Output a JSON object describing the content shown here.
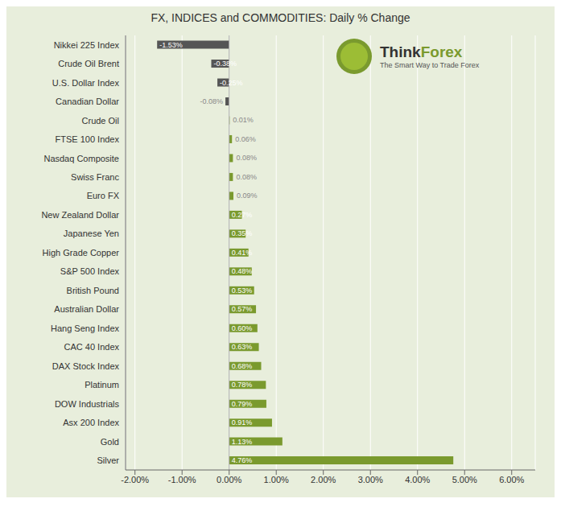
{
  "chart_data": {
    "type": "bar",
    "orientation": "horizontal",
    "title": "FX, INDICES and COMMODITIES: Daily % Change",
    "annotations": [
      "Think",
      "Forex",
      "The Smart Way to Trade Forex"
    ],
    "categories": [
      "Nikkei 225 Index",
      "Crude Oil Brent",
      "U.S. Dollar Index",
      "Canadian Dollar",
      "Crude Oil",
      "FTSE 100 Index",
      "Nasdaq Composite",
      "Swiss Franc",
      "Euro FX",
      "New Zealand Dollar",
      "Japanese Yen",
      "High Grade Copper",
      "S&P 500 Index",
      "British Pound",
      "Australian Dollar",
      "Hang Seng Index",
      "CAC 40 Index",
      "DAX Stock Index",
      "Platinum",
      "DOW Industrials",
      "Asx 200 Index",
      "Gold",
      "Silver"
    ],
    "values": [
      -1.53,
      -0.38,
      -0.25,
      -0.08,
      0.01,
      0.06,
      0.08,
      0.08,
      0.09,
      0.27,
      0.35,
      0.41,
      0.48,
      0.53,
      0.57,
      0.6,
      0.63,
      0.68,
      0.78,
      0.79,
      0.91,
      1.13,
      4.76
    ],
    "value_labels": [
      "-1.53%",
      "-0.38%",
      "-0.25%",
      "-0.08%",
      "0.01%",
      "0.06%",
      "0.08%",
      "0.08%",
      "0.09%",
      "0.27%",
      "0.35%",
      "0.41%",
      "0.48%",
      "0.53%",
      "0.57%",
      "0.60%",
      "0.63%",
      "0.68%",
      "0.78%",
      "0.79%",
      "0.91%",
      "1.13%",
      "4.76%"
    ],
    "colors": [
      "#555555",
      "#555555",
      "#555555",
      "#555555",
      "#7a9a2e",
      "#7a9a2e",
      "#7a9a2e",
      "#7a9a2e",
      "#7a9a2e",
      "#7a9a2e",
      "#7a9a2e",
      "#7a9a2e",
      "#7a9a2e",
      "#7a9a2e",
      "#7a9a2e",
      "#7a9a2e",
      "#7a9a2e",
      "#7a9a2e",
      "#7a9a2e",
      "#7a9a2e",
      "#7a9a2e",
      "#7a9a2e",
      "#7a9a2e"
    ],
    "xlim": [
      -2.2,
      6.5
    ],
    "xticks": [
      {
        "value": -2.0,
        "label": "-2.00%"
      },
      {
        "value": -1.0,
        "label": "-1.00%"
      },
      {
        "value": 0.0,
        "label": "0.00%"
      },
      {
        "value": 1.0,
        "label": "1.00%"
      },
      {
        "value": 2.0,
        "label": "2.00%"
      },
      {
        "value": 3.0,
        "label": "3.00%"
      },
      {
        "value": 4.0,
        "label": "4.00%"
      },
      {
        "value": 5.0,
        "label": "5.00%"
      },
      {
        "value": 6.0,
        "label": "6.00%"
      }
    ],
    "grid": true,
    "data_labels": true
  }
}
